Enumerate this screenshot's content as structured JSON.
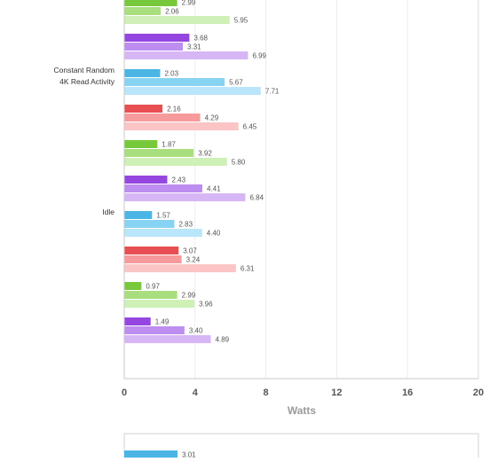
{
  "chart_data": {
    "type": "bar",
    "orientation": "horizontal",
    "xlabel": "Watts",
    "xlim": [
      0,
      20
    ],
    "xticks": [
      0,
      4,
      8,
      12,
      16,
      20
    ],
    "grid": true,
    "groups": [
      {
        "label_lines": [],
        "bars": [
          {
            "value": 2.99,
            "color": "#77c93b"
          },
          {
            "value": 2.06,
            "color": "#a9de7e"
          },
          {
            "value": 5.95,
            "color": "#cff0b6"
          },
          {
            "value": 3.68,
            "color": "#9646e0"
          },
          {
            "value": 3.31,
            "color": "#bd8df0"
          },
          {
            "value": 6.99,
            "color": "#d7b6f5"
          }
        ]
      },
      {
        "label_lines": [
          "Constant Random",
          "4K Read Activity"
        ],
        "bars": [
          {
            "value": 2.03,
            "color": "#4bb5e6"
          },
          {
            "value": 5.67,
            "color": "#87d3f3"
          },
          {
            "value": 7.71,
            "color": "#b9e6fa"
          },
          {
            "value": 2.16,
            "color": "#e84f52"
          },
          {
            "value": 4.29,
            "color": "#f79a9b"
          },
          {
            "value": 6.45,
            "color": "#fbc5c6"
          },
          {
            "value": 1.87,
            "color": "#77c93b"
          },
          {
            "value": 3.92,
            "color": "#a9de7e"
          },
          {
            "value": 5.8,
            "color": "#cff0b6"
          },
          {
            "value": 2.43,
            "color": "#9646e0"
          },
          {
            "value": 4.41,
            "color": "#bd8df0"
          },
          {
            "value": 6.84,
            "color": "#d7b6f5"
          }
        ]
      },
      {
        "label_lines": [
          "Idle"
        ],
        "bars": [
          {
            "value": 1.57,
            "color": "#4bb5e6"
          },
          {
            "value": 2.83,
            "color": "#87d3f3"
          },
          {
            "value": 4.4,
            "color": "#b9e6fa"
          },
          {
            "value": 3.07,
            "color": "#e84f52"
          },
          {
            "value": 3.24,
            "color": "#f79a9b"
          },
          {
            "value": 6.31,
            "color": "#fbc5c6"
          },
          {
            "value": 0.97,
            "color": "#77c93b"
          },
          {
            "value": 2.99,
            "color": "#a9de7e"
          },
          {
            "value": 3.96,
            "color": "#cff0b6"
          },
          {
            "value": 1.49,
            "color": "#9646e0"
          },
          {
            "value": 3.4,
            "color": "#bd8df0"
          },
          {
            "value": 4.89,
            "color": "#d7b6f5"
          }
        ]
      }
    ],
    "next_chart": {
      "bars": [
        {
          "value": 3.01,
          "color": "#4bb5e6"
        }
      ]
    }
  }
}
